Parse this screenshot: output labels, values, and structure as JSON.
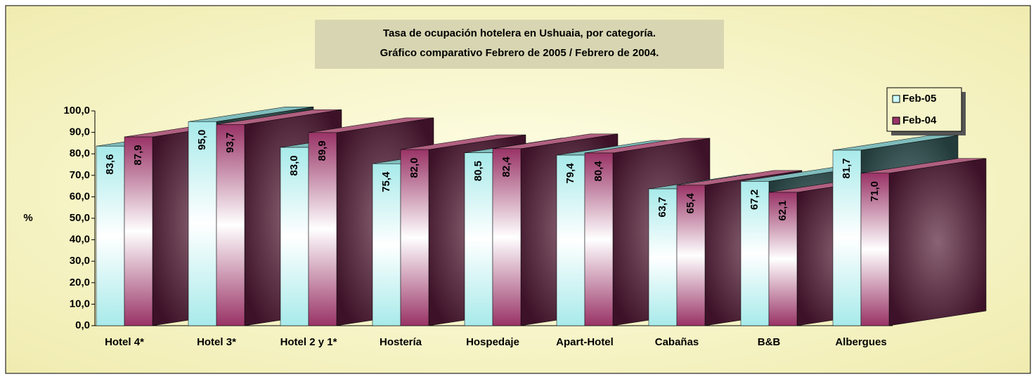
{
  "chart_data": {
    "type": "bar3d",
    "title": "Tasa de ocupación hotelera en Ushuaia, por categoría.",
    "subtitle": "Gráfico comparativo Febrero de 2005 / Febrero de 2004.",
    "y_label": "%",
    "categories": [
      "Hotel 4*",
      "Hotel 3*",
      "Hotel 2 y 1*",
      "Hostería",
      "Hospedaje",
      "Apart-Hotel",
      "Cabañas",
      "B&B",
      "Albergues"
    ],
    "series": [
      {
        "name": "Feb-05",
        "color": "#ccffff",
        "values": [
          83.6,
          95.0,
          83.0,
          75.4,
          80.5,
          79.4,
          63.7,
          67.2,
          81.7
        ],
        "value_labels": [
          "83,6",
          "95,0",
          "83,0",
          "75,4",
          "80,5",
          "79,4",
          "63,7",
          "67,2",
          "81,7"
        ]
      },
      {
        "name": "Feb-04",
        "color": "#993366",
        "values": [
          87.9,
          93.7,
          89.9,
          82.0,
          82.4,
          80.4,
          65.4,
          62.1,
          71.0
        ],
        "value_labels": [
          "87,9",
          "93,7",
          "89,9",
          "82,0",
          "82,4",
          "80,4",
          "65,4",
          "62,1",
          "71,0"
        ]
      }
    ],
    "ylim": [
      0,
      100
    ],
    "yticks": [
      {
        "value": 0,
        "label": "0,0"
      },
      {
        "value": 10,
        "label": "10,0"
      },
      {
        "value": 20,
        "label": "20,0"
      },
      {
        "value": 30,
        "label": "30,0"
      },
      {
        "value": 40,
        "label": "40,0"
      },
      {
        "value": 50,
        "label": "50,0"
      },
      {
        "value": 60,
        "label": "60,0"
      },
      {
        "value": 70,
        "label": "70,0"
      },
      {
        "value": 80,
        "label": "80,0"
      },
      {
        "value": 90,
        "label": "90,0"
      },
      {
        "value": 100,
        "label": "100,0"
      }
    ],
    "legend": "top-right"
  }
}
